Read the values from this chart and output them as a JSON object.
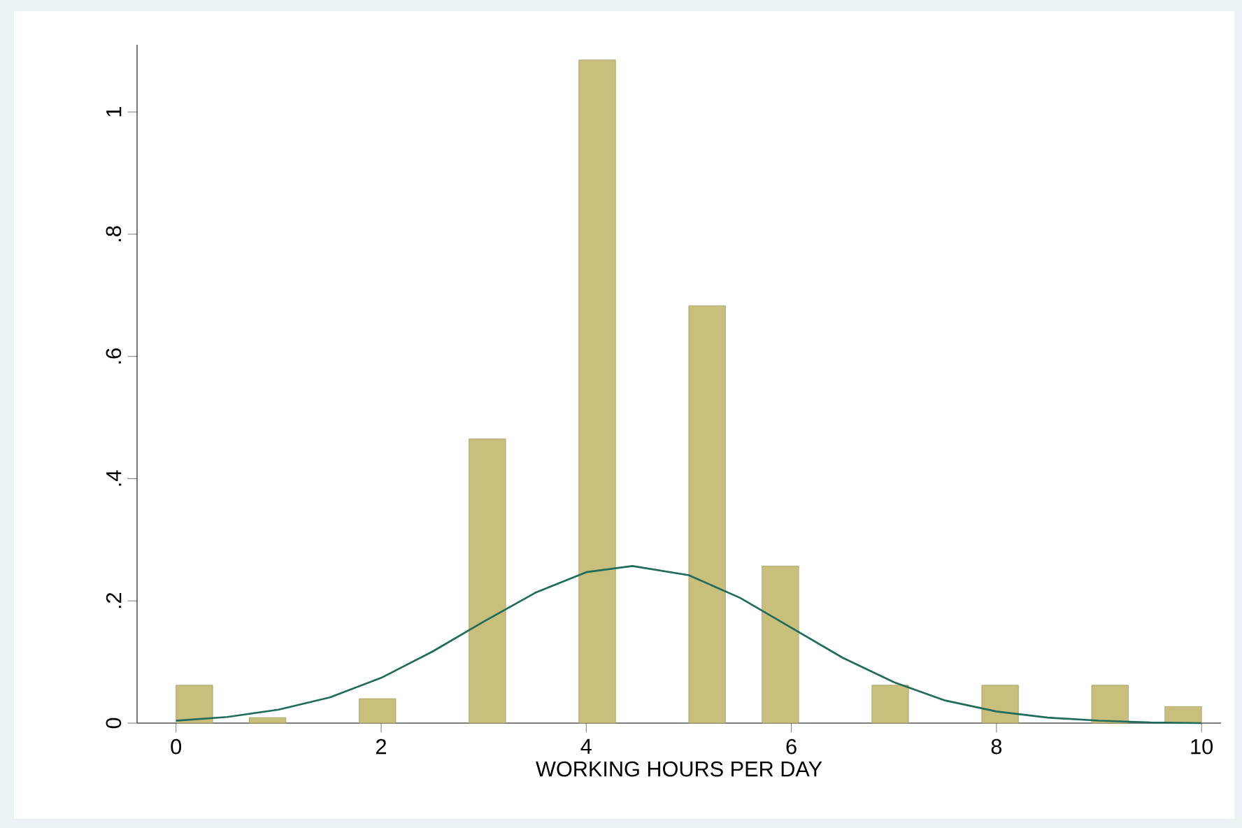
{
  "chart_data": {
    "type": "histogram",
    "xlabel": "WORKING HOURS PER DAY",
    "bins": [
      0,
      0.35714,
      0.71429,
      1.07143,
      1.42857,
      1.78571,
      2.14286,
      2.5,
      2.85714,
      3.21429,
      3.57143,
      3.92857,
      4.28571,
      4.64286,
      5,
      5.35714,
      5.71429,
      6.07143,
      6.42857,
      6.78571,
      7.14286,
      7.5,
      7.85714,
      8.21429,
      8.57143,
      8.92857,
      9.28571,
      9.64286,
      10
    ],
    "values": [
      0.062,
      0,
      0.009,
      0,
      0,
      0.04,
      0,
      0,
      0.465,
      0,
      0,
      1.085,
      0,
      0,
      0.683,
      0,
      0.257,
      0,
      0,
      0.062,
      0,
      0,
      0.062,
      0,
      0,
      0.062,
      0,
      0.027
    ],
    "color": "#c9bf7c",
    "series": [
      {
        "type": "line",
        "color": "#1f6b5c",
        "x": [
          0,
          0.5,
          1,
          1.5,
          2,
          2.5,
          3,
          3.5,
          4,
          4.45,
          5,
          5.5,
          6,
          6.5,
          7,
          7.5,
          8,
          8.5,
          9,
          9.5,
          10
        ],
        "values": [
          0.004,
          0.01,
          0.022,
          0.042,
          0.074,
          0.117,
          0.166,
          0.213,
          0.247,
          0.257,
          0.242,
          0.205,
          0.156,
          0.107,
          0.067,
          0.037,
          0.019,
          0.009,
          0.004,
          0.001,
          0
        ]
      }
    ],
    "xlim": [
      -0.38,
      10.19
    ],
    "ylim": [
      0,
      1.11
    ],
    "xticks": [
      0,
      2,
      4,
      6,
      8,
      10
    ],
    "yticks": [
      0,
      {
        "value": 0.2,
        "label": ".2"
      },
      {
        "value": 0.4,
        "label": ".4"
      },
      {
        "value": 0.6,
        "label": ".6"
      },
      {
        "value": 0.8,
        "label": ".8"
      },
      1
    ],
    "grid": false
  }
}
